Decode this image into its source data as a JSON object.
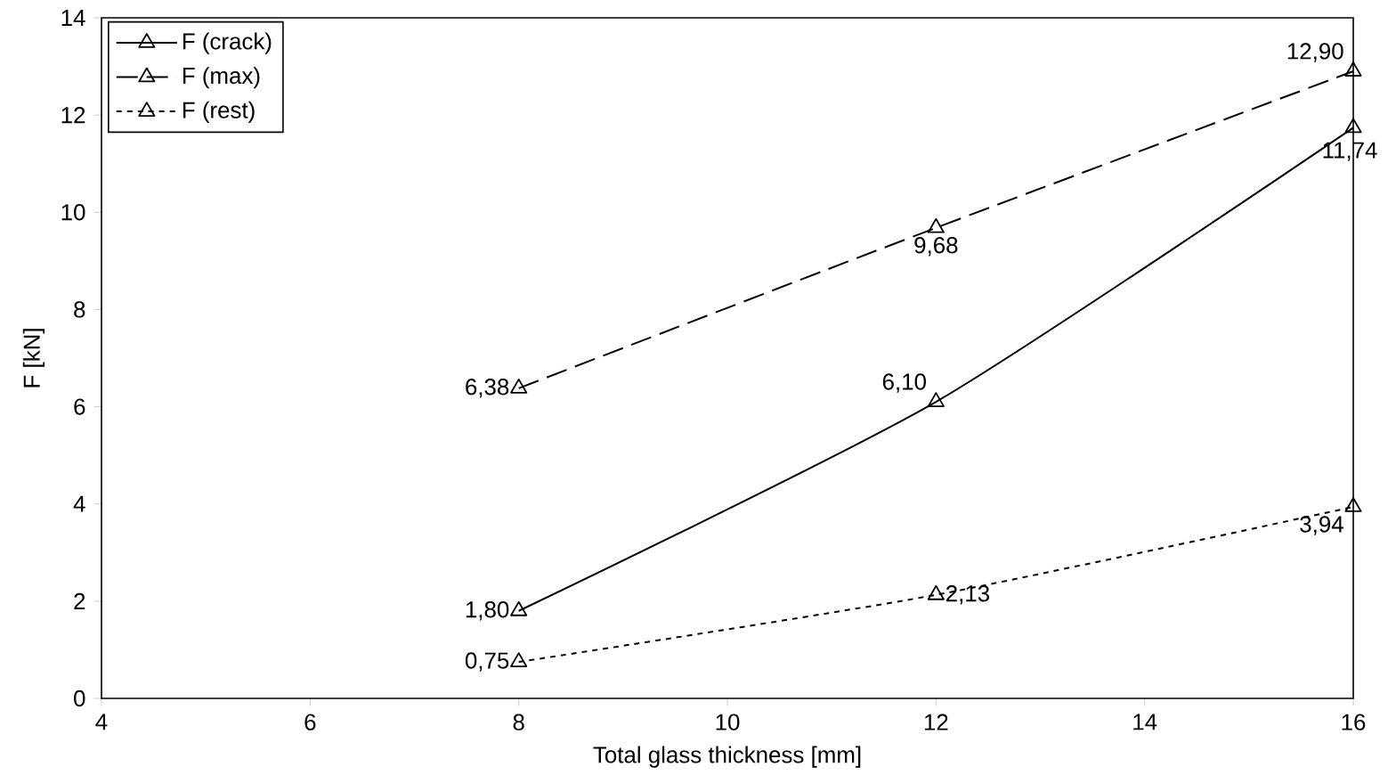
{
  "chart_data": {
    "type": "line",
    "xlabel": "Total glass thickness [mm]",
    "ylabel": "F [kN]",
    "x": [
      8,
      12,
      16
    ],
    "series": [
      {
        "name": "F (crack)",
        "color": "#000000",
        "line_style": "solid",
        "values": [
          1.8,
          6.1,
          11.74
        ],
        "value_labels": [
          "1,80",
          "6,10",
          "11,74"
        ]
      },
      {
        "name": "F (max)",
        "color": "#000000",
        "line_style": "dashed",
        "values": [
          6.38,
          9.68,
          12.9
        ],
        "value_labels": [
          "6,38",
          "9,68",
          "12,90"
        ]
      },
      {
        "name": "F (rest)",
        "color": "#000000",
        "line_style": "dotted",
        "values": [
          0.75,
          2.13,
          3.94
        ],
        "value_labels": [
          "0,75",
          "2,13",
          "3,94"
        ]
      }
    ],
    "xlim": [
      4,
      16
    ],
    "xticks": [
      4,
      6,
      8,
      10,
      12,
      14,
      16
    ],
    "ylim": [
      0,
      14
    ],
    "yticks": [
      0,
      2,
      4,
      6,
      8,
      10,
      12,
      14
    ],
    "grid": false,
    "legend": "top left",
    "marker": "triangle"
  }
}
